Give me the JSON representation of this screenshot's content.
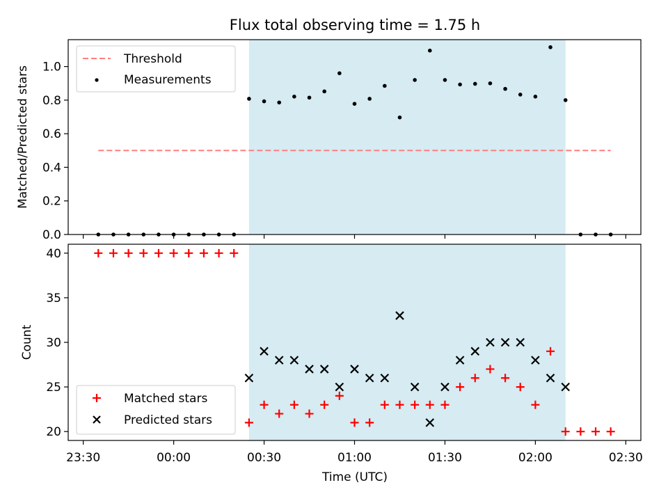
{
  "chart_data": [
    {
      "type": "scatter",
      "title": "Flux total observing time = 1.75 h",
      "xlabel": "",
      "ylabel": "Matched/Predicted stars",
      "ylim": [
        0,
        1.16
      ],
      "yticks": [
        0.0,
        0.2,
        0.4,
        0.6,
        0.8,
        1.0
      ],
      "ytick_labels": [
        "0.0",
        "0.2",
        "0.4",
        "0.6",
        "0.8",
        "1.0"
      ],
      "x_unit": "minutes since 23:30 UTC",
      "xlim": [
        -5,
        185
      ],
      "shaded_interval": [
        55,
        160
      ],
      "shade_color": "#add8e6",
      "grid": false,
      "legend_position": "upper left",
      "series": [
        {
          "name": "Threshold",
          "style": "dashed-line",
          "color": "#ff7f7f",
          "x": [
            5,
            175
          ],
          "y": [
            0.5,
            0.5
          ]
        },
        {
          "name": "Measurements",
          "style": "dot",
          "color": "#000000",
          "x": [
            5,
            10,
            15,
            20,
            25,
            30,
            35,
            40,
            45,
            50,
            55,
            60,
            65,
            70,
            75,
            80,
            85,
            90,
            95,
            100,
            105,
            110,
            115,
            120,
            125,
            130,
            135,
            140,
            145,
            150,
            155,
            160,
            165,
            170,
            175
          ],
          "y": [
            0,
            0,
            0,
            0,
            0,
            0,
            0,
            0,
            0,
            0,
            0.808,
            0.793,
            0.786,
            0.821,
            0.815,
            0.852,
            0.96,
            0.778,
            0.808,
            0.885,
            0.697,
            0.92,
            1.095,
            0.92,
            0.893,
            0.897,
            0.9,
            0.867,
            0.833,
            0.821,
            1.115,
            0.8,
            0,
            0,
            0
          ]
        }
      ]
    },
    {
      "type": "scatter",
      "title": "",
      "xlabel": "Time (UTC)",
      "ylabel": "Count",
      "ylim": [
        19,
        41
      ],
      "yticks": [
        20,
        25,
        30,
        35,
        40
      ],
      "ytick_labels": [
        "20",
        "25",
        "30",
        "35",
        "40"
      ],
      "xticks": [
        0,
        30,
        60,
        90,
        120,
        150,
        180
      ],
      "xtick_labels": [
        "23:30",
        "00:00",
        "00:30",
        "01:00",
        "01:30",
        "02:00",
        "02:30"
      ],
      "x_unit": "minutes since 23:30 UTC",
      "xlim": [
        -5,
        185
      ],
      "shaded_interval": [
        55,
        160
      ],
      "shade_color": "#add8e6",
      "grid": false,
      "legend_position": "lower left",
      "series": [
        {
          "name": "Matched stars",
          "marker": "+",
          "color": "#ff0000",
          "x": [
            5,
            10,
            15,
            20,
            25,
            30,
            35,
            40,
            45,
            50,
            55,
            60,
            65,
            70,
            75,
            80,
            85,
            90,
            95,
            100,
            105,
            110,
            115,
            120,
            125,
            130,
            135,
            140,
            145,
            150,
            155,
            160,
            165,
            170,
            175
          ],
          "y": [
            40,
            40,
            40,
            40,
            40,
            40,
            40,
            40,
            40,
            40,
            21,
            23,
            22,
            23,
            22,
            23,
            24,
            21,
            21,
            23,
            23,
            23,
            23,
            23,
            25,
            26,
            27,
            26,
            25,
            23,
            29,
            20,
            20,
            20,
            20
          ]
        },
        {
          "name": "Predicted stars",
          "marker": "x",
          "color": "#000000",
          "x": [
            55,
            60,
            65,
            70,
            75,
            80,
            85,
            90,
            95,
            100,
            105,
            110,
            115,
            120,
            125,
            130,
            135,
            140,
            145,
            150,
            155,
            160
          ],
          "y": [
            26,
            29,
            28,
            28,
            27,
            27,
            25,
            27,
            26,
            26,
            33,
            25,
            21,
            25,
            28,
            29,
            30,
            30,
            30,
            28,
            26,
            25
          ]
        }
      ]
    }
  ]
}
